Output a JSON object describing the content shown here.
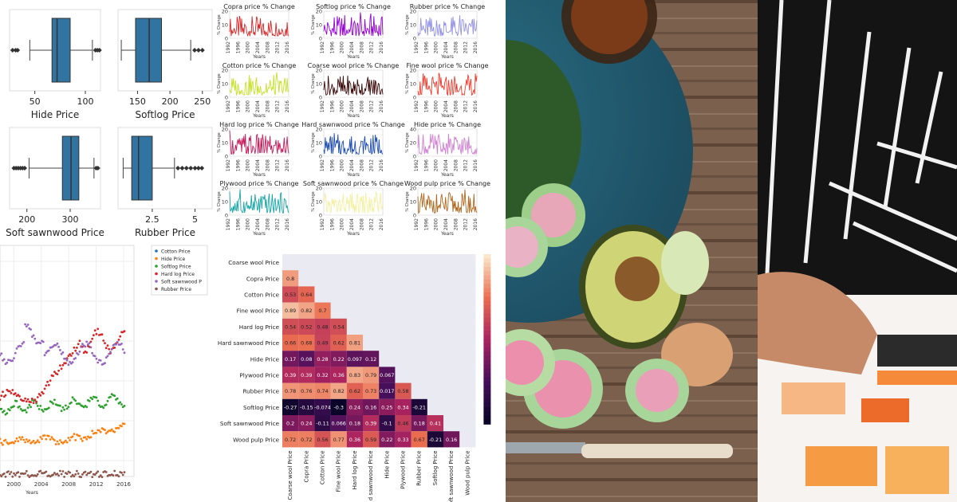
{
  "box_plots": [
    {
      "label": "Hide Price",
      "ticks": [
        50,
        100
      ],
      "range": [
        25,
        115
      ],
      "q1": 67,
      "med": 72,
      "q3": 85,
      "wlo": 45,
      "whi": 107,
      "out": [
        28,
        31,
        33,
        110,
        112,
        114
      ]
    },
    {
      "label": "Softlog Price",
      "ticks": [
        150,
        200,
        250
      ],
      "range": [
        120,
        265
      ],
      "q1": 147,
      "med": 168,
      "q3": 187,
      "wlo": 125,
      "whi": 232,
      "out": [
        238,
        244,
        250
      ]
    },
    {
      "label": "Soft sawnwood Price",
      "ticks": [
        200,
        300
      ],
      "range": [
        160,
        370
      ],
      "q1": 282,
      "med": 302,
      "q3": 320,
      "wlo": 205,
      "whi": 355,
      "out": [
        170,
        175,
        180,
        185,
        190,
        195,
        360,
        364
      ]
    },
    {
      "label": "Rubber Price",
      "ticks": [
        2.5,
        5.0
      ],
      "range": [
        0.5,
        6
      ],
      "q1": 1.3,
      "med": 1.7,
      "q3": 2.5,
      "wlo": 0.8,
      "whi": 3.8,
      "out": [
        4.0,
        4.25,
        4.5,
        4.75,
        5.0,
        5.2,
        5.4
      ]
    }
  ],
  "minis": [
    {
      "title": "Copra price % Change",
      "color": "#d62728",
      "ymax": 20,
      "yticks": [
        0,
        10,
        20
      ]
    },
    {
      "title": "Softlog price % Change",
      "color": "#9400d3",
      "ymax": 20,
      "yticks": [
        0,
        10,
        20
      ]
    },
    {
      "title": "Rubber price % Change",
      "color": "#9190e8",
      "ymax": 20,
      "yticks": [
        0,
        10,
        20
      ]
    },
    {
      "title": "Cotton price % Change",
      "color": "#c6e12a",
      "ymax": 20,
      "yticks": [
        0,
        10,
        20
      ]
    },
    {
      "title": "Coarse wool price % Change",
      "color": "#3d0a0a",
      "ymax": 20,
      "yticks": [
        0,
        10,
        20
      ]
    },
    {
      "title": "Fine wool price % Change",
      "color": "#ef3b2c",
      "ymax": 20,
      "yticks": [
        0,
        10,
        20
      ]
    },
    {
      "title": "Hard log price % Change",
      "color": "#c51b5a",
      "ymax": 20,
      "yticks": [
        0,
        10,
        20
      ]
    },
    {
      "title": "Hard sawnwood price % Change",
      "color": "#1f4eb4",
      "ymax": 20,
      "yticks": [
        0,
        10,
        20
      ]
    },
    {
      "title": "Hide price % Change",
      "color": "#d17fd3",
      "ymax": 40,
      "yticks": [
        0,
        20,
        40
      ]
    },
    {
      "title": "Plywood price % Change",
      "color": "#17a5a5",
      "ymax": 20,
      "yticks": [
        0,
        10,
        20
      ]
    },
    {
      "title": "Soft sawnwood price % Change",
      "color": "#f3f0a0",
      "ymax": 20,
      "yticks": [
        0,
        10,
        20
      ]
    },
    {
      "title": "Wood pulp price % Change",
      "color": "#b0661c",
      "ymax": 20,
      "yticks": [
        0,
        10,
        20
      ]
    }
  ],
  "mini_xticks": [
    "1992",
    "1996",
    "2000",
    "2004",
    "2008",
    "2012",
    "2016"
  ],
  "mini_xlabel": "Years",
  "mini_ylabel": "% Change",
  "scatter": {
    "xticks": [
      "2000",
      "2004",
      "2008",
      "2012",
      "2016"
    ],
    "xlabel": "Years",
    "legend": [
      {
        "name": "Cotton Price",
        "color": "#1f77b4"
      },
      {
        "name": "Hide Price",
        "color": "#ff7f0e"
      },
      {
        "name": "Softlog Price",
        "color": "#2ca02c"
      },
      {
        "name": "Hard log Price",
        "color": "#d62728"
      },
      {
        "name": "Soft sawnwood P",
        "color": "#9467bd"
      },
      {
        "name": "Rubber Price",
        "color": "#8c564b"
      }
    ]
  },
  "chart_data": {
    "type": "heatmap",
    "labels": [
      "Coarse wool Price",
      "Copra Price",
      "Cotton Price",
      "Fine wool Price",
      "Hard log Price",
      "Hard sawnwood Price",
      "Hide Price",
      "Plywood Price",
      "Rubber Price",
      "Softlog Price",
      "Soft sawnwood Price",
      "Wood pulp Price"
    ],
    "xlabels": [
      "Coarse wool Price",
      "Copra Price",
      "Cotton Price",
      "Fine wool Price",
      "Hard log Price",
      "d sawnwood Price",
      "Hide Price",
      "Plywood Price",
      "Rubber Price",
      "Softlog Price",
      "Soft sawnwood Price",
      "Wood pulp Price"
    ],
    "rows": [
      [],
      [
        "0.8"
      ],
      [
        "0.53",
        "0.64"
      ],
      [
        "0.89",
        "0.82",
        "0.7"
      ],
      [
        "0.54",
        "0.52",
        "0.48",
        "0.54"
      ],
      [
        "0.66",
        "0.68",
        "0.49",
        "0.62",
        "0.81"
      ],
      [
        "0.17",
        "0.08",
        "0.28",
        "0.22",
        "0.097",
        "0.12"
      ],
      [
        "0.39",
        "0.39",
        "0.32",
        "0.36",
        "0.83",
        "0.79",
        "0.067"
      ],
      [
        "0.78",
        "0.76",
        "0.74",
        "0.82",
        "0.62",
        "0.73",
        "0.017",
        "0.58"
      ],
      [
        "-0.27",
        "-0.15",
        "-0.074",
        "-0.3",
        "0.24",
        "0.16",
        "0.25",
        "0.34",
        "-0.21"
      ],
      [
        "0.2",
        "0.24",
        "-0.11",
        "0.066",
        "0.18",
        "0.39",
        "-0.1",
        "0.46",
        "0.18",
        "0.41"
      ],
      [
        "0.72",
        "0.72",
        "0.56",
        "0.77",
        "0.36",
        "0.59",
        "0.22",
        "0.33",
        "0.67",
        "-0.21",
        "0.16"
      ]
    ]
  }
}
